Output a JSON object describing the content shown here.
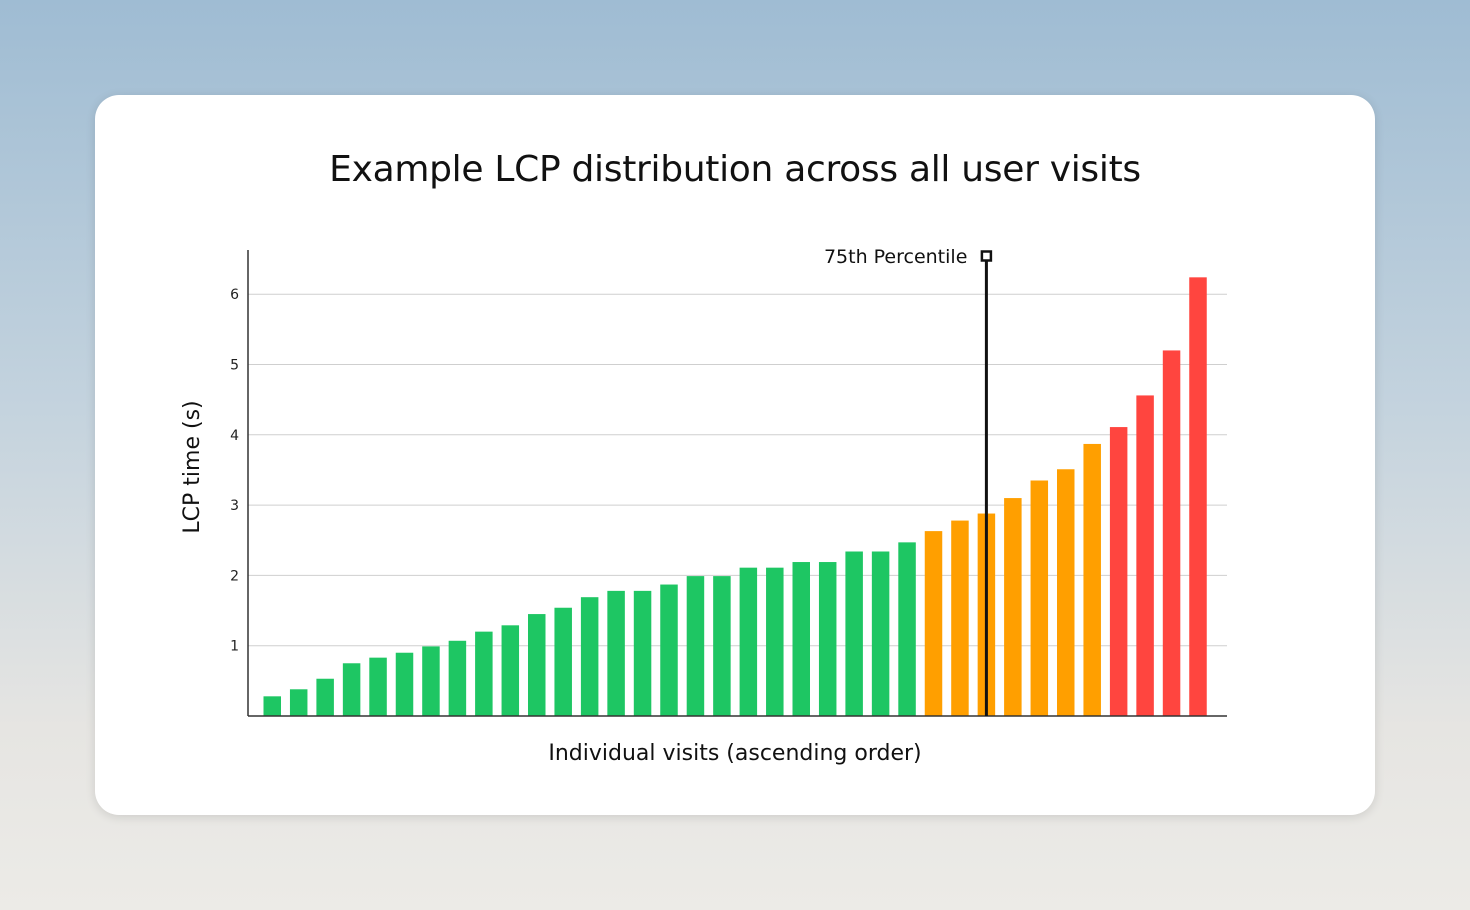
{
  "chart_data": {
    "type": "bar",
    "title": "Example LCP distribution across all user visits",
    "xlabel": "Individual visits (ascending order)",
    "ylabel": "LCP time (s)",
    "ylim": [
      0,
      6.6
    ],
    "yticks": [
      1,
      2,
      3,
      4,
      5,
      6
    ],
    "grid": true,
    "values": [
      0.28,
      0.38,
      0.53,
      0.75,
      0.83,
      0.9,
      0.99,
      1.07,
      1.2,
      1.29,
      1.45,
      1.54,
      1.69,
      1.78,
      1.78,
      1.87,
      1.99,
      1.99,
      2.11,
      2.11,
      2.19,
      2.19,
      2.34,
      2.34,
      2.47,
      2.63,
      2.78,
      2.88,
      3.1,
      3.35,
      3.51,
      3.87,
      4.11,
      4.56,
      5.2,
      6.24
    ],
    "bar_colors": {
      "good": "#1ec663",
      "needs_improvement": "#ff9f00",
      "poor": "#ff453f"
    },
    "thresholds": {
      "good_max": 2.5,
      "needs_improvement_max": 4.0
    },
    "annotation": {
      "label": "75th Percentile",
      "value": 2.88,
      "position_after_bar": 27
    }
  }
}
